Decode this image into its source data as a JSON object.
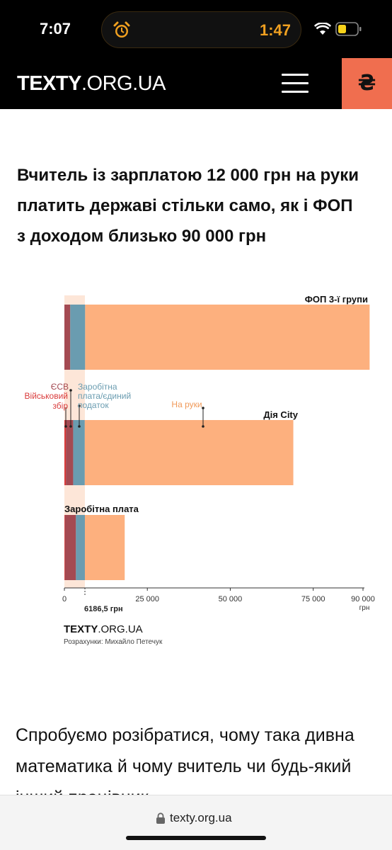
{
  "status_bar": {
    "time": "7:07",
    "timer": "1:47",
    "alarm_icon": "alarm-clock-icon",
    "wifi_icon": "wifi-icon",
    "battery_icon": "battery-low-icon",
    "timer_color": "#f0a020"
  },
  "header": {
    "logo_bold": "TEXTY",
    "logo_rest": ".ORG.UA",
    "menu_icon": "hamburger-menu-icon",
    "donate_label": "₴",
    "donate_color": "#f06e4f"
  },
  "article": {
    "title": "Вчитель із зарплатою 12 000 грн на руки платить державі стільки само, як і ФОП з доходом близько 90 000 грн",
    "body_start": "Спробуємо розібратися, чому така дивна математика й чому вчитель чи будь-який інший працівник"
  },
  "chart_data": {
    "type": "bar",
    "orientation": "horizontal",
    "stacked": true,
    "categories": [
      "ФОП 3-ї групи",
      "Дія City",
      "Заробітна плата"
    ],
    "series": [
      {
        "name": "Військовий збір",
        "color": "#d93a3a",
        "values": [
          0,
          450,
          180
        ]
      },
      {
        "name": "ЄСВ",
        "color": "#a44a52",
        "values": [
          1760,
          2200,
          3300
        ]
      },
      {
        "name": "Заробітна плата/єдиний податок",
        "color": "#6a9cb0",
        "values": [
          4500,
          3500,
          2700
        ]
      },
      {
        "name": "На руки",
        "color": "#fdb07e",
        "values": [
          85740,
          62850,
          12000
        ]
      }
    ],
    "x_ticks": [
      "0",
      "25 000",
      "50 000",
      "75 000",
      "90 000"
    ],
    "x_tick_values": [
      0,
      25000,
      50000,
      75000,
      90000
    ],
    "x_unit": "грн",
    "xlim": [
      0,
      90000
    ],
    "threshold_label": "6186,5 грн",
    "threshold_value": 6186.5,
    "threshold_band_color": "#fde6d8",
    "legend_placement": "inline annotations above middle bar",
    "source_logo": "TEXTY.ORG.UA",
    "credit": "Розрахунки: Михайло Петечук"
  },
  "footer": {
    "lock_icon": "lock-icon",
    "url": "texty.org.ua"
  }
}
